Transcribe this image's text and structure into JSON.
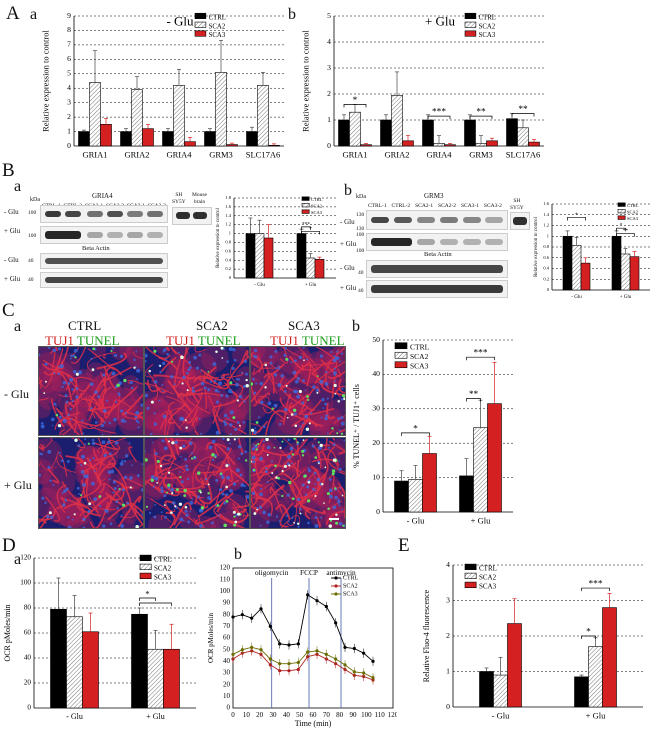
{
  "colors": {
    "ctrl": "#000000",
    "sca2": "#ffffff",
    "sca3": "#d42020",
    "grid": "#000000"
  },
  "panels": {
    "A": "A",
    "B": "B",
    "C": "C",
    "D": "D",
    "E": "E",
    "a": "a",
    "b": "b"
  },
  "conditions": {
    "minus": "- Glu",
    "plus": "+ Glu"
  },
  "legend": {
    "ctrl": "CTRL",
    "sca2": "SCA2",
    "sca3": "SCA3"
  },
  "sig": {
    "one": "*",
    "two": "**",
    "three": "***"
  },
  "blots": {
    "kda": "kDa",
    "gria4_title": "GRIA4",
    "grm3_title": "GRM3",
    "beta_actin": "Beta Actin",
    "lanes": [
      "CTRL-1",
      "CTRL-2",
      "SCA2-1",
      "SCA2-2",
      "SCA3-1",
      "SCA3-2"
    ],
    "sh": "SH",
    "sy5y": "SY5Y",
    "mouse": "Mouse",
    "brain": "brain",
    "mw_a": [
      "100",
      "100",
      "40",
      "40"
    ],
    "mw_b": [
      "130",
      "100",
      "130",
      "100",
      "40",
      "40"
    ]
  },
  "micro": {
    "tuj1": "TUJ1",
    "tunel": "TUNEL"
  },
  "chart_data": [
    {
      "id": "Aa",
      "type": "bar",
      "title": "- Glu",
      "ylabel": "Relative expression to control",
      "categories": [
        "GRIA1",
        "GRIA2",
        "GRIA4",
        "GRM3",
        "SLC17A6"
      ],
      "ylim": [
        0,
        9
      ],
      "yticks": [
        0,
        1,
        2,
        3,
        4,
        5,
        6,
        7,
        8,
        9
      ],
      "series": [
        {
          "name": "CTRL",
          "values": [
            1.0,
            1.0,
            1.0,
            1.0,
            1.0
          ],
          "errors": [
            0.1,
            0.2,
            0.2,
            0.2,
            0.3
          ]
        },
        {
          "name": "SCA2",
          "values": [
            4.4,
            3.9,
            4.2,
            5.1,
            4.2
          ],
          "errors": [
            2.2,
            0.9,
            1.1,
            2.2,
            0.9
          ]
        },
        {
          "name": "SCA3",
          "values": [
            1.5,
            1.2,
            0.3,
            0.1,
            0.05
          ],
          "errors": [
            0.4,
            0.3,
            0.3,
            0.1,
            0.1
          ]
        }
      ],
      "legend": "top-right",
      "grid": "dashed"
    },
    {
      "id": "Ab",
      "type": "bar",
      "title": "+ Glu",
      "ylabel": "Relative expression to control",
      "categories": [
        "GRIA1",
        "GRIA2",
        "GRIA4",
        "GRM3",
        "SLC17A6"
      ],
      "ylim": [
        0,
        5
      ],
      "yticks": [
        0,
        1,
        2,
        3,
        4,
        5
      ],
      "series": [
        {
          "name": "CTRL",
          "values": [
            1.0,
            1.0,
            1.0,
            1.0,
            1.05
          ],
          "errors": [
            0.2,
            0.2,
            0.2,
            0.2,
            0.2
          ]
        },
        {
          "name": "SCA2",
          "values": [
            1.3,
            1.95,
            0.1,
            0.1,
            0.7
          ],
          "errors": [
            0.3,
            0.9,
            0.3,
            0.3,
            0.3
          ]
        },
        {
          "name": "SCA3",
          "values": [
            0.05,
            0.2,
            0.05,
            0.2,
            0.15
          ],
          "errors": [
            0.05,
            0.2,
            0.05,
            0.1,
            0.1
          ]
        }
      ],
      "brackets": [
        {
          "cat": 0,
          "from": 0,
          "to": 2,
          "label": "*",
          "y": 1.6
        },
        {
          "cat": 2,
          "from": 0,
          "to": 2,
          "label": "***",
          "y": 1.15
        },
        {
          "cat": 3,
          "from": 0,
          "to": 2,
          "label": "**",
          "y": 1.15
        },
        {
          "cat": 4,
          "from": 0,
          "to": 2,
          "label": "**",
          "y": 1.25
        }
      ],
      "legend": "top-right",
      "grid": "dashed"
    },
    {
      "id": "Ba",
      "type": "bar",
      "ylabel": "Relative expression to control",
      "categories": [
        "- Glu",
        "+ Glu"
      ],
      "ylim": [
        0,
        1.8
      ],
      "yticks": [
        0,
        0.2,
        0.4,
        0.6,
        0.8,
        1.0,
        1.2,
        1.4,
        1.6,
        1.8
      ],
      "series": [
        {
          "name": "CTRL",
          "values": [
            1.0,
            1.0
          ],
          "errors": [
            0.35,
            0.1
          ]
        },
        {
          "name": "SCA2",
          "values": [
            1.0,
            0.45
          ],
          "errors": [
            0.3,
            0.1
          ]
        },
        {
          "name": "SCA3",
          "values": [
            0.9,
            0.42
          ],
          "errors": [
            0.3,
            0.05
          ]
        }
      ],
      "brackets": [
        {
          "cat": 1,
          "from": 0,
          "to": 1,
          "label": "***",
          "y": 1.15
        },
        {
          "cat": 1,
          "from": 0,
          "to": 2,
          "label": "*",
          "y": 1.05
        }
      ],
      "legend": "top-right",
      "grid": "dashed"
    },
    {
      "id": "Bb",
      "type": "bar",
      "ylabel": "Relative expression to control",
      "categories": [
        "- Glu",
        "+ Glu"
      ],
      "ylim": [
        0,
        1.6
      ],
      "yticks": [
        0,
        0.2,
        0.4,
        0.6,
        0.8,
        1.0,
        1.2,
        1.4,
        1.6
      ],
      "series": [
        {
          "name": "CTRL",
          "values": [
            1.0,
            1.0
          ],
          "errors": [
            0.1,
            0.1
          ]
        },
        {
          "name": "SCA2",
          "values": [
            0.83,
            0.67
          ],
          "errors": [
            0.15,
            0.1
          ]
        },
        {
          "name": "SCA3",
          "values": [
            0.5,
            0.62
          ],
          "errors": [
            0.1,
            0.1
          ]
        }
      ],
      "brackets": [
        {
          "cat": 0,
          "from": 0,
          "to": 2,
          "label": "*",
          "y": 1.35
        },
        {
          "cat": 1,
          "from": 0,
          "to": 1,
          "label": "*",
          "y": 1.15
        },
        {
          "cat": 1,
          "from": 0,
          "to": 2,
          "label": "**",
          "y": 1.05
        }
      ],
      "legend": "top-right",
      "grid": "dashed"
    },
    {
      "id": "Cb",
      "type": "bar",
      "ylabel": "% TUNEL⁺ / TUJ1⁺ cells",
      "categories": [
        "- Glu",
        "+ Glu"
      ],
      "ylim": [
        0,
        50
      ],
      "yticks": [
        0,
        10,
        20,
        30,
        40,
        50
      ],
      "series": [
        {
          "name": "CTRL",
          "values": [
            9,
            10.5
          ],
          "errors": [
            3,
            5
          ]
        },
        {
          "name": "SCA2",
          "values": [
            9.5,
            24.5
          ],
          "errors": [
            4,
            8
          ]
        },
        {
          "name": "SCA3",
          "values": [
            17,
            31.5
          ],
          "errors": [
            5,
            12
          ]
        }
      ],
      "brackets": [
        {
          "cat": 0,
          "from": 0,
          "to": 2,
          "label": "*",
          "y": 23
        },
        {
          "cat": 1,
          "from": 0,
          "to": 1,
          "label": "**",
          "y": 33
        },
        {
          "cat": 1,
          "from": 0,
          "to": 2,
          "label": "***",
          "y": 45
        }
      ],
      "legend": "top-left",
      "grid": "dashed"
    },
    {
      "id": "Da",
      "type": "bar",
      "ylabel": "OCR pMoles/min",
      "categories": [
        "- Glu",
        "+ Glu"
      ],
      "ylim": [
        0,
        120
      ],
      "yticks": [
        0,
        20,
        40,
        60,
        80,
        100,
        120
      ],
      "series": [
        {
          "name": "CTRL",
          "values": [
            79,
            75
          ],
          "errors": [
            25,
            5
          ]
        },
        {
          "name": "SCA2",
          "values": [
            73,
            47
          ],
          "errors": [
            17,
            15
          ]
        },
        {
          "name": "SCA3",
          "values": [
            61,
            47
          ],
          "errors": [
            15,
            20
          ]
        }
      ],
      "brackets": [
        {
          "cat": 1,
          "from": 0,
          "to": 1,
          "label": "*",
          "y": 88
        },
        {
          "cat": 1,
          "from": 0,
          "to": 2,
          "label": "",
          "y": 84
        }
      ],
      "legend": "top-right",
      "grid": "dashed"
    },
    {
      "id": "Db",
      "type": "line",
      "xlabel": "Time (min)",
      "ylabel": "OCR pMoles/min",
      "xlim": [
        0,
        120
      ],
      "xticks": [
        0,
        10,
        20,
        30,
        40,
        50,
        60,
        70,
        80,
        90,
        100,
        110,
        120
      ],
      "ylim": [
        0,
        120
      ],
      "yticks": [
        0,
        10,
        20,
        30,
        40,
        50,
        60,
        70,
        80,
        90,
        100,
        110,
        120
      ],
      "x": [
        0,
        7,
        14,
        21,
        28,
        35,
        42,
        49,
        56,
        63,
        70,
        77,
        84,
        91,
        98,
        105
      ],
      "series": [
        {
          "name": "CTRL",
          "values": [
            78,
            80,
            77,
            85,
            70,
            55,
            54,
            55,
            97,
            92,
            87,
            73,
            52,
            51,
            47,
            40
          ]
        },
        {
          "name": "SCA2",
          "values": [
            42,
            47,
            49,
            46,
            37,
            32,
            32,
            33,
            44,
            46,
            42,
            38,
            33,
            28,
            27,
            24
          ]
        },
        {
          "name": "SCA3",
          "values": [
            46,
            50,
            52,
            50,
            42,
            38,
            38,
            39,
            48,
            49,
            46,
            42,
            37,
            31,
            30,
            26
          ]
        }
      ],
      "annotations": [
        {
          "label": "oligomycin",
          "x": 29
        },
        {
          "label": "FCCP",
          "x": 57
        },
        {
          "label": "antimycin",
          "x": 81
        }
      ],
      "legend": "top-right"
    },
    {
      "id": "E",
      "type": "bar",
      "ylabel": "Relative Fluo-4 fluorescence",
      "categories": [
        "- Glu",
        "+ Glu"
      ],
      "ylim": [
        0,
        4
      ],
      "yticks": [
        0,
        1,
        2,
        3,
        4
      ],
      "series": [
        {
          "name": "CTRL",
          "values": [
            1.0,
            0.85
          ],
          "errors": [
            0.1,
            0.05
          ]
        },
        {
          "name": "SCA2",
          "values": [
            0.9,
            1.7
          ],
          "errors": [
            0.5,
            0.25
          ]
        },
        {
          "name": "SCA3",
          "values": [
            2.35,
            2.8
          ],
          "errors": [
            0.7,
            0.4
          ]
        }
      ],
      "brackets": [
        {
          "cat": 1,
          "from": 0,
          "to": 1,
          "label": "*",
          "y": 2.0
        },
        {
          "cat": 1,
          "from": 0,
          "to": 2,
          "label": "***",
          "y": 3.35
        }
      ],
      "legend": "top-left",
      "grid": "dashed"
    }
  ]
}
